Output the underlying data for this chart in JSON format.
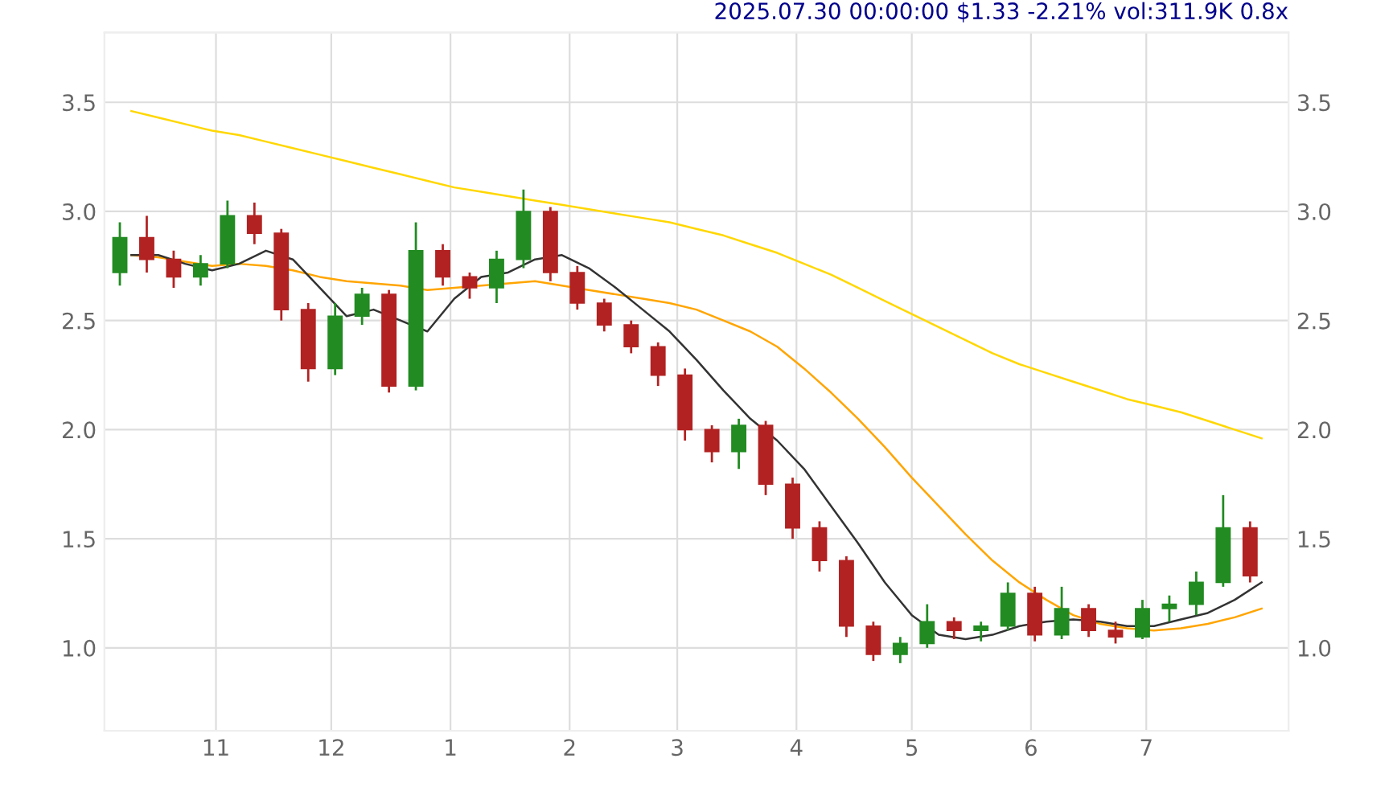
{
  "chart_data": {
    "type": "candlestick",
    "title": "2025.07.30 00:00:00 $1.33 -2.21% vol:311.9K 0.8x",
    "x": [
      "2024-10-07",
      "2024-10-14",
      "2024-10-21",
      "2024-10-28",
      "2024-11-04",
      "2024-11-11",
      "2024-11-18",
      "2024-11-25",
      "2024-12-02",
      "2024-12-09",
      "2024-12-16",
      "2024-12-23",
      "2024-12-30",
      "2025-01-06",
      "2025-01-13",
      "2025-01-20",
      "2025-01-27",
      "2025-02-03",
      "2025-02-10",
      "2025-02-17",
      "2025-02-24",
      "2025-03-03",
      "2025-03-10",
      "2025-03-17",
      "2025-03-24",
      "2025-03-31",
      "2025-04-07",
      "2025-04-14",
      "2025-04-21",
      "2025-04-28",
      "2025-05-05",
      "2025-05-12",
      "2025-05-19",
      "2025-05-26",
      "2025-06-02",
      "2025-06-09",
      "2025-06-16",
      "2025-06-23",
      "2025-06-30",
      "2025-07-07",
      "2025-07-14",
      "2025-07-21",
      "2025-07-28"
    ],
    "ohlc": [
      [
        2.72,
        2.95,
        2.66,
        2.88
      ],
      [
        2.88,
        2.98,
        2.72,
        2.78
      ],
      [
        2.78,
        2.82,
        2.65,
        2.7
      ],
      [
        2.7,
        2.8,
        2.66,
        2.76
      ],
      [
        2.76,
        3.05,
        2.74,
        2.98
      ],
      [
        2.98,
        3.04,
        2.85,
        2.9
      ],
      [
        2.9,
        2.92,
        2.5,
        2.55
      ],
      [
        2.55,
        2.58,
        2.22,
        2.28
      ],
      [
        2.28,
        2.58,
        2.25,
        2.52
      ],
      [
        2.52,
        2.65,
        2.48,
        2.62
      ],
      [
        2.62,
        2.64,
        2.17,
        2.2
      ],
      [
        2.2,
        2.95,
        2.18,
        2.82
      ],
      [
        2.82,
        2.85,
        2.66,
        2.7
      ],
      [
        2.7,
        2.72,
        2.6,
        2.65
      ],
      [
        2.65,
        2.82,
        2.58,
        2.78
      ],
      [
        2.78,
        3.1,
        2.74,
        3.0
      ],
      [
        3.0,
        3.02,
        2.68,
        2.72
      ],
      [
        2.72,
        2.75,
        2.55,
        2.58
      ],
      [
        2.58,
        2.6,
        2.45,
        2.48
      ],
      [
        2.48,
        2.5,
        2.35,
        2.38
      ],
      [
        2.38,
        2.4,
        2.2,
        2.25
      ],
      [
        2.25,
        2.28,
        1.95,
        2.0
      ],
      [
        2.0,
        2.02,
        1.85,
        1.9
      ],
      [
        1.9,
        2.05,
        1.82,
        2.02
      ],
      [
        2.02,
        2.04,
        1.7,
        1.75
      ],
      [
        1.75,
        1.78,
        1.5,
        1.55
      ],
      [
        1.55,
        1.58,
        1.35,
        1.4
      ],
      [
        1.4,
        1.42,
        1.05,
        1.1
      ],
      [
        1.1,
        1.12,
        0.94,
        0.97
      ],
      [
        0.97,
        1.05,
        0.93,
        1.02
      ],
      [
        1.02,
        1.2,
        1.0,
        1.12
      ],
      [
        1.12,
        1.14,
        1.04,
        1.08
      ],
      [
        1.08,
        1.12,
        1.03,
        1.1
      ],
      [
        1.1,
        1.3,
        1.08,
        1.25
      ],
      [
        1.25,
        1.28,
        1.03,
        1.06
      ],
      [
        1.06,
        1.28,
        1.04,
        1.18
      ],
      [
        1.18,
        1.2,
        1.05,
        1.08
      ],
      [
        1.08,
        1.12,
        1.02,
        1.05
      ],
      [
        1.05,
        1.22,
        1.04,
        1.18
      ],
      [
        1.18,
        1.24,
        1.12,
        1.2
      ],
      [
        1.2,
        1.35,
        1.15,
        1.3
      ],
      [
        1.3,
        1.7,
        1.28,
        1.55
      ],
      [
        1.55,
        1.58,
        1.3,
        1.33
      ]
    ],
    "colors": [
      "#228b22",
      "#b22222",
      "#b22222",
      "#228b22",
      "#228b22",
      "#b22222",
      "#b22222",
      "#b22222",
      "#228b22",
      "#228b22",
      "#b22222",
      "#228b22",
      "#b22222",
      "#b22222",
      "#228b22",
      "#228b22",
      "#b22222",
      "#b22222",
      "#b22222",
      "#b22222",
      "#b22222",
      "#b22222",
      "#b22222",
      "#228b22",
      "#b22222",
      "#b22222",
      "#b22222",
      "#b22222",
      "#b22222",
      "#228b22",
      "#228b22",
      "#b22222",
      "#228b22",
      "#228b22",
      "#b22222",
      "#228b22",
      "#b22222",
      "#b22222",
      "#228b22",
      "#228b22",
      "#228b22",
      "#228b22",
      "#b22222"
    ],
    "series": [
      {
        "type": "line",
        "color": "#ffd700",
        "x": [
          "2024-10-10",
          "2024-10-17",
          "2024-10-24",
          "2024-10-31",
          "2024-11-07",
          "2024-11-14",
          "2024-11-21",
          "2024-11-28",
          "2024-12-05",
          "2024-12-12",
          "2024-12-19",
          "2024-12-26",
          "2025-01-02",
          "2025-01-09",
          "2025-01-16",
          "2025-01-23",
          "2025-01-30",
          "2025-02-06",
          "2025-02-13",
          "2025-02-20",
          "2025-02-27",
          "2025-03-06",
          "2025-03-13",
          "2025-03-20",
          "2025-03-27",
          "2025-04-03",
          "2025-04-10",
          "2025-04-17",
          "2025-04-24",
          "2025-05-01",
          "2025-05-08",
          "2025-05-15",
          "2025-05-22",
          "2025-05-29",
          "2025-06-05",
          "2025-06-12",
          "2025-06-19",
          "2025-06-26",
          "2025-07-03",
          "2025-07-10",
          "2025-07-17",
          "2025-07-24",
          "2025-07-31"
        ],
        "values": [
          3.46,
          3.43,
          3.4,
          3.37,
          3.35,
          3.32,
          3.29,
          3.26,
          3.23,
          3.2,
          3.17,
          3.14,
          3.11,
          3.09,
          3.07,
          3.05,
          3.03,
          3.01,
          2.99,
          2.97,
          2.95,
          2.92,
          2.89,
          2.85,
          2.81,
          2.76,
          2.71,
          2.65,
          2.59,
          2.53,
          2.47,
          2.41,
          2.35,
          2.3,
          2.26,
          2.22,
          2.18,
          2.14,
          2.11,
          2.08,
          2.04,
          2.0,
          1.96
        ]
      },
      {
        "type": "line",
        "color": "#ffa500",
        "x": [
          "2024-10-10",
          "2024-10-17",
          "2024-10-24",
          "2024-10-31",
          "2024-11-07",
          "2024-11-14",
          "2024-11-21",
          "2024-11-28",
          "2024-12-05",
          "2024-12-12",
          "2024-12-19",
          "2024-12-26",
          "2025-01-02",
          "2025-01-09",
          "2025-01-16",
          "2025-01-23",
          "2025-01-30",
          "2025-02-06",
          "2025-02-13",
          "2025-02-20",
          "2025-02-27",
          "2025-03-06",
          "2025-03-13",
          "2025-03-20",
          "2025-03-27",
          "2025-04-03",
          "2025-04-10",
          "2025-04-17",
          "2025-04-24",
          "2025-05-01",
          "2025-05-08",
          "2025-05-15",
          "2025-05-22",
          "2025-05-29",
          "2025-06-05",
          "2025-06-12",
          "2025-06-19",
          "2025-06-26",
          "2025-07-03",
          "2025-07-10",
          "2025-07-17",
          "2025-07-24",
          "2025-07-31"
        ],
        "values": [
          2.8,
          2.79,
          2.77,
          2.75,
          2.76,
          2.75,
          2.73,
          2.7,
          2.68,
          2.67,
          2.66,
          2.64,
          2.65,
          2.66,
          2.67,
          2.68,
          2.66,
          2.64,
          2.62,
          2.6,
          2.58,
          2.55,
          2.5,
          2.45,
          2.38,
          2.28,
          2.17,
          2.05,
          1.92,
          1.78,
          1.65,
          1.52,
          1.4,
          1.3,
          1.22,
          1.15,
          1.11,
          1.09,
          1.08,
          1.09,
          1.11,
          1.14,
          1.18
        ]
      },
      {
        "type": "line",
        "color": "#333333",
        "x": [
          "2024-10-10",
          "2024-10-17",
          "2024-10-24",
          "2024-10-31",
          "2024-11-07",
          "2024-11-14",
          "2024-11-21",
          "2024-11-28",
          "2024-12-05",
          "2024-12-12",
          "2024-12-19",
          "2024-12-26",
          "2025-01-02",
          "2025-01-09",
          "2025-01-16",
          "2025-01-23",
          "2025-01-30",
          "2025-02-06",
          "2025-02-13",
          "2025-02-20",
          "2025-02-27",
          "2025-03-06",
          "2025-03-13",
          "2025-03-20",
          "2025-03-27",
          "2025-04-03",
          "2025-04-10",
          "2025-04-17",
          "2025-04-24",
          "2025-05-01",
          "2025-05-08",
          "2025-05-15",
          "2025-05-22",
          "2025-05-29",
          "2025-06-05",
          "2025-06-12",
          "2025-06-19",
          "2025-06-26",
          "2025-07-03",
          "2025-07-10",
          "2025-07-17",
          "2025-07-24",
          "2025-07-31"
        ],
        "values": [
          2.8,
          2.8,
          2.76,
          2.73,
          2.76,
          2.82,
          2.78,
          2.65,
          2.52,
          2.55,
          2.5,
          2.45,
          2.6,
          2.7,
          2.72,
          2.78,
          2.8,
          2.74,
          2.65,
          2.55,
          2.45,
          2.32,
          2.18,
          2.05,
          1.95,
          1.82,
          1.65,
          1.48,
          1.3,
          1.15,
          1.06,
          1.04,
          1.06,
          1.1,
          1.12,
          1.13,
          1.12,
          1.1,
          1.1,
          1.13,
          1.16,
          1.22,
          1.3
        ]
      }
    ],
    "xlim": [
      "2024-10-03",
      "2025-08-07"
    ],
    "xticks": [
      {
        "value": "2024-11-01",
        "label": "11"
      },
      {
        "value": "2024-12-01",
        "label": "12"
      },
      {
        "value": "2025-01-01",
        "label": "1"
      },
      {
        "value": "2025-02-01",
        "label": "2"
      },
      {
        "value": "2025-03-01",
        "label": "3"
      },
      {
        "value": "2025-04-01",
        "label": "4"
      },
      {
        "value": "2025-05-01",
        "label": "5"
      },
      {
        "value": "2025-06-01",
        "label": "6"
      },
      {
        "value": "2025-07-01",
        "label": "7"
      }
    ],
    "ylim": [
      0.62,
      3.82
    ],
    "yticks": [
      {
        "value": 1,
        "label": "1.0"
      },
      {
        "value": 1.5,
        "label": "1.5"
      },
      {
        "value": 2,
        "label": "2.0"
      },
      {
        "value": 2.5,
        "label": "2.5"
      },
      {
        "value": 3,
        "label": "3.0"
      },
      {
        "value": 3.5,
        "label": "3.5"
      }
    ],
    "y2lim": [
      0.62,
      3.82
    ],
    "y2ticks": [
      {
        "value": 1,
        "label": "1.0"
      },
      {
        "value": 1.5,
        "label": "1.5"
      },
      {
        "value": 2,
        "label": "2.0"
      },
      {
        "value": 2.5,
        "label": "2.5"
      },
      {
        "value": 3,
        "label": "3.0"
      },
      {
        "value": 3.5,
        "label": "3.5"
      }
    ],
    "grid": true
  }
}
